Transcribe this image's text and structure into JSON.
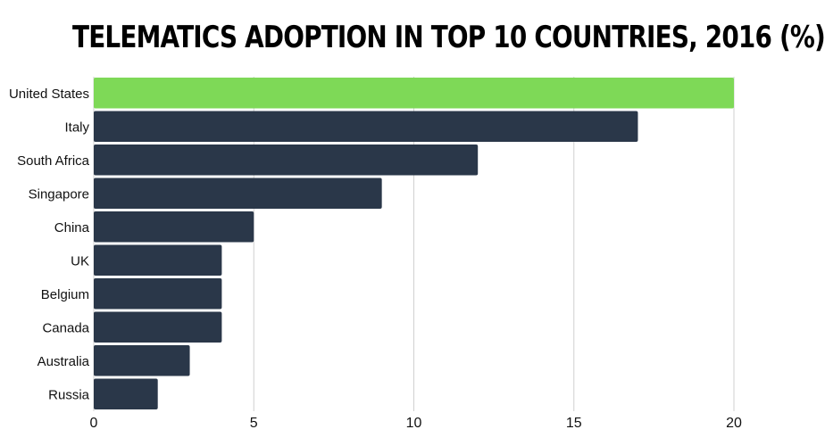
{
  "chart_data": {
    "type": "bar",
    "orientation": "horizontal",
    "title": "Telematics adoption in top 10 countries, 2016 (%)",
    "categories": [
      "United States",
      "Italy",
      "South Africa",
      "Singapore",
      "China",
      "UK",
      "Belgium",
      "Canada",
      "Australia",
      "Russia"
    ],
    "values": [
      20,
      17,
      12,
      9,
      5,
      4,
      4,
      4,
      3,
      2
    ],
    "xlim": [
      0,
      20
    ],
    "xticks": [
      0,
      5,
      10,
      15,
      20
    ],
    "grid": true,
    "colors": {
      "highlight": "#7ed957",
      "default": "#2a3749",
      "grid": "#d0d0d0"
    }
  }
}
